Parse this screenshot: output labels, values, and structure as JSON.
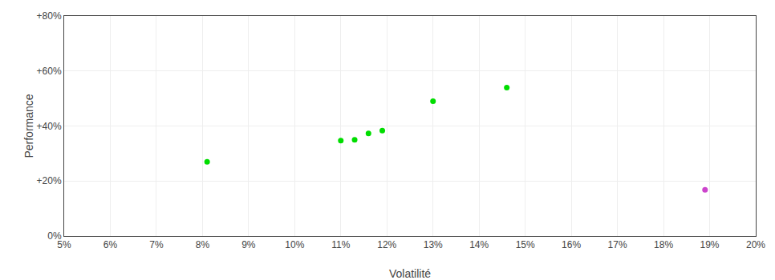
{
  "chart_data": {
    "type": "scatter",
    "xlabel": "Volatilité",
    "ylabel": "Performance",
    "series": [
      {
        "color": "#00dd00",
        "x": [
          0.081,
          0.11,
          0.113,
          0.116,
          0.119,
          0.13,
          0.146
        ],
        "values": [
          0.27,
          0.347,
          0.35,
          0.373,
          0.383,
          0.49,
          0.54
        ]
      },
      {
        "color": "#cc44cc",
        "x": [
          0.189
        ],
        "values": [
          0.168
        ]
      }
    ],
    "xlim": [
      0.05,
      0.2
    ],
    "ylim": [
      0.0,
      0.8
    ],
    "xticks": [
      {
        "value": 0.05,
        "label": "5%"
      },
      {
        "value": 0.06,
        "label": "6%"
      },
      {
        "value": 0.07,
        "label": "7%"
      },
      {
        "value": 0.08,
        "label": "8%"
      },
      {
        "value": 0.09,
        "label": "9%"
      },
      {
        "value": 0.1,
        "label": "10%"
      },
      {
        "value": 0.11,
        "label": "11%"
      },
      {
        "value": 0.12,
        "label": "12%"
      },
      {
        "value": 0.13,
        "label": "13%"
      },
      {
        "value": 0.14,
        "label": "14%"
      },
      {
        "value": 0.15,
        "label": "15%"
      },
      {
        "value": 0.16,
        "label": "16%"
      },
      {
        "value": 0.17,
        "label": "17%"
      },
      {
        "value": 0.18,
        "label": "18%"
      },
      {
        "value": 0.19,
        "label": "19%"
      },
      {
        "value": 0.2,
        "label": "20%"
      }
    ],
    "yticks": [
      {
        "value": 0.0,
        "label": "0%"
      },
      {
        "value": 0.2,
        "label": "+20%"
      },
      {
        "value": 0.4,
        "label": "+40%"
      },
      {
        "value": 0.6,
        "label": "+60%"
      },
      {
        "value": 0.8,
        "label": "+80%"
      }
    ],
    "grid": true
  }
}
